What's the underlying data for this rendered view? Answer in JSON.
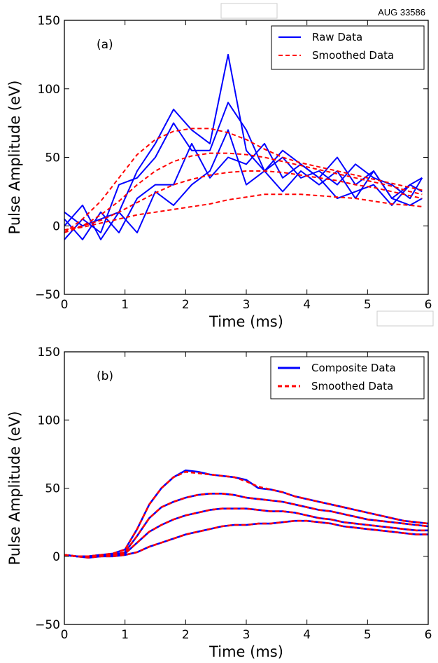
{
  "corner_label": "AUG 33586",
  "chart_data": [
    {
      "type": "line",
      "panel_label": "(a)",
      "xlabel": "Time (ms)",
      "ylabel": "Pulse Amplitude (eV)",
      "xlim": [
        0,
        6
      ],
      "ylim": [
        -50,
        150
      ],
      "xticks": [
        "0",
        "1",
        "2",
        "3",
        "4",
        "5",
        "6"
      ],
      "yticks": [
        "−50",
        "0",
        "50",
        "100",
        "150"
      ],
      "legend_position": "top-right",
      "legend": [
        {
          "label": "Raw Data",
          "color": "#0000ff",
          "style": "solid"
        },
        {
          "label": "Smoothed Data",
          "color": "#ff0000",
          "style": "dashed"
        }
      ],
      "colors": {
        "raw": "#0000ff",
        "smoothed": "#ff0000"
      },
      "x": [
        0,
        0.3,
        0.6,
        0.9,
        1.2,
        1.5,
        1.8,
        2.1,
        2.4,
        2.7,
        3.0,
        3.3,
        3.6,
        3.9,
        4.2,
        4.5,
        4.8,
        5.1,
        5.4,
        5.7,
        5.9
      ],
      "raw_series": [
        [
          0,
          15,
          -10,
          10,
          40,
          60,
          85,
          70,
          60,
          125,
          55,
          40,
          55,
          45,
          35,
          50,
          30,
          40,
          20,
          30,
          25
        ],
        [
          -10,
          5,
          -5,
          30,
          35,
          50,
          75,
          55,
          55,
          90,
          70,
          40,
          50,
          35,
          40,
          30,
          45,
          35,
          30,
          20,
          35
        ],
        [
          5,
          -10,
          10,
          -5,
          20,
          30,
          30,
          60,
          35,
          50,
          45,
          60,
          35,
          45,
          35,
          20,
          25,
          30,
          15,
          30,
          35
        ],
        [
          10,
          0,
          5,
          10,
          -5,
          25,
          15,
          30,
          40,
          70,
          30,
          40,
          25,
          40,
          30,
          40,
          20,
          40,
          20,
          15,
          20
        ]
      ],
      "smoothed_series": [
        [
          -5,
          5,
          18,
          35,
          52,
          63,
          69,
          71,
          71,
          68,
          63,
          56,
          50,
          46,
          43,
          40,
          37,
          34,
          31,
          28,
          26
        ],
        [
          -5,
          0,
          8,
          18,
          30,
          40,
          47,
          51,
          53,
          53,
          52,
          50,
          47,
          44,
          41,
          38,
          35,
          32,
          29,
          25,
          23
        ],
        [
          -3,
          0,
          4,
          10,
          17,
          24,
          30,
          34,
          37,
          39,
          40,
          40,
          39,
          37,
          35,
          33,
          30,
          28,
          25,
          22,
          20
        ],
        [
          -3,
          -1,
          2,
          5,
          8,
          10,
          12,
          14,
          16,
          19,
          21,
          23,
          23,
          23,
          22,
          21,
          20,
          18,
          16,
          15,
          14
        ]
      ]
    },
    {
      "type": "line",
      "panel_label": "(b)",
      "xlabel": "Time (ms)",
      "ylabel": "Pulse Amplitude (eV)",
      "xlim": [
        0,
        6
      ],
      "ylim": [
        -50,
        150
      ],
      "xticks": [
        "0",
        "1",
        "2",
        "3",
        "4",
        "5",
        "6"
      ],
      "yticks": [
        "−50",
        "0",
        "50",
        "100",
        "150"
      ],
      "legend_position": "top-right",
      "legend": [
        {
          "label": "Composite Data",
          "color": "#0000ff",
          "style": "solid"
        },
        {
          "label": "Smoothed Data",
          "color": "#ff0000",
          "style": "dashed"
        }
      ],
      "colors": {
        "raw": "#0000ff",
        "smoothed": "#ff0000"
      },
      "x": [
        0,
        0.2,
        0.4,
        0.6,
        0.8,
        1.0,
        1.2,
        1.4,
        1.6,
        1.8,
        2.0,
        2.2,
        2.4,
        2.6,
        2.8,
        3.0,
        3.2,
        3.4,
        3.6,
        3.8,
        4.0,
        4.2,
        4.4,
        4.6,
        4.8,
        5.0,
        5.2,
        5.4,
        5.6,
        5.8,
        6.0
      ],
      "raw_series": [
        [
          1,
          0,
          0,
          1,
          2,
          5,
          20,
          38,
          50,
          58,
          63,
          62,
          60,
          59,
          58,
          56,
          50,
          49,
          47,
          44,
          42,
          40,
          38,
          36,
          34,
          32,
          30,
          28,
          26,
          25,
          24
        ],
        [
          1,
          0,
          0,
          1,
          1,
          3,
          15,
          28,
          36,
          40,
          43,
          45,
          46,
          46,
          45,
          43,
          42,
          41,
          40,
          38,
          36,
          34,
          33,
          31,
          29,
          27,
          26,
          25,
          24,
          23,
          22
        ],
        [
          1,
          0,
          0,
          0,
          1,
          2,
          10,
          18,
          23,
          27,
          30,
          32,
          34,
          35,
          35,
          35,
          34,
          33,
          33,
          32,
          30,
          28,
          27,
          25,
          24,
          23,
          22,
          21,
          20,
          19,
          19
        ],
        [
          1,
          0,
          -1,
          0,
          0,
          1,
          3,
          7,
          10,
          13,
          16,
          18,
          20,
          22,
          23,
          23,
          24,
          24,
          25,
          26,
          26,
          25,
          24,
          22,
          21,
          20,
          19,
          18,
          17,
          16,
          16
        ]
      ],
      "smoothed_series": [
        [
          1,
          0,
          0,
          1,
          2,
          5,
          20,
          38,
          50,
          58,
          62,
          61,
          60,
          59,
          58,
          55,
          51,
          49,
          47,
          44,
          42,
          40,
          38,
          36,
          34,
          32,
          30,
          28,
          26,
          25,
          24
        ],
        [
          1,
          0,
          0,
          1,
          1,
          3,
          15,
          28,
          36,
          40,
          43,
          45,
          46,
          46,
          45,
          43,
          42,
          41,
          40,
          38,
          36,
          34,
          33,
          31,
          29,
          27,
          26,
          25,
          24,
          23,
          22
        ],
        [
          1,
          0,
          0,
          0,
          1,
          2,
          10,
          18,
          23,
          27,
          30,
          32,
          34,
          35,
          35,
          35,
          34,
          33,
          33,
          32,
          30,
          28,
          27,
          25,
          24,
          23,
          22,
          21,
          20,
          19,
          19
        ],
        [
          1,
          0,
          -1,
          0,
          0,
          1,
          3,
          7,
          10,
          13,
          16,
          18,
          20,
          22,
          23,
          23,
          24,
          24,
          25,
          26,
          26,
          25,
          24,
          22,
          21,
          20,
          19,
          18,
          17,
          16,
          16
        ]
      ]
    }
  ]
}
